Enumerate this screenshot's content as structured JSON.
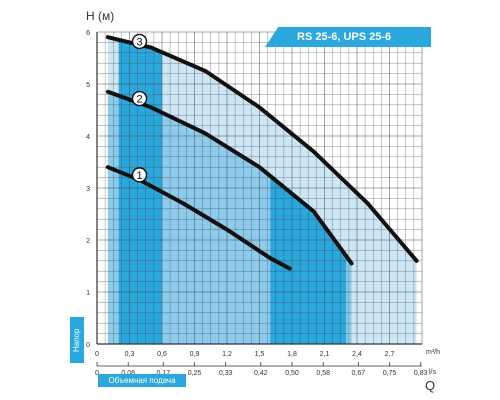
{
  "chart_data": {
    "type": "line",
    "title": "RS 25-6, UPS 25-6",
    "ylabel": "H (м)",
    "xlabel": "Q",
    "x_unit_top": "m³/h",
    "x_unit_bottom": "l/s",
    "side_label": "Напор",
    "bottom_label": "Объемная подача",
    "xlim": [
      0,
      3
    ],
    "ylim": [
      0,
      6
    ],
    "x_ticks_m3h": [
      "0",
      "0,3",
      "0,6",
      "0,9",
      "1,2",
      "1,5",
      "1,8",
      "2,1",
      "2,4",
      "2,7"
    ],
    "x_ticks_m3h_values": [
      0,
      0.3,
      0.6,
      0.9,
      1.2,
      1.5,
      1.8,
      2.1,
      2.4,
      2.7
    ],
    "x_ticks_ls": [
      "0",
      "0,08",
      "0,17",
      "0,25",
      "0,33",
      "0,42",
      "0,50",
      "0,58",
      "0,67",
      "0,75",
      "0,83"
    ],
    "x_ticks_ls_values": [
      0,
      0.288,
      0.612,
      0.9,
      1.188,
      1.512,
      1.8,
      2.088,
      2.412,
      2.7,
      2.988
    ],
    "y_ticks": [
      "0",
      "1",
      "2",
      "3",
      "4",
      "5",
      "6"
    ],
    "y_ticks_values": [
      0,
      1,
      2,
      3,
      4,
      5,
      6
    ],
    "grid": true,
    "colors": {
      "curve": "#111111",
      "light_fill": "#cde6f6",
      "mid_fill": "#8ccbeb",
      "dark_fill": "#2aa7dc",
      "accent": "#2aa7dc"
    },
    "series": [
      {
        "name": "1",
        "x": [
          0.1,
          0.4,
          0.8,
          1.2,
          1.6,
          1.78
        ],
        "y": [
          3.4,
          3.15,
          2.7,
          2.2,
          1.65,
          1.45
        ]
      },
      {
        "name": "2",
        "x": [
          0.1,
          0.5,
          1.0,
          1.5,
          2.0,
          2.35
        ],
        "y": [
          4.85,
          4.55,
          4.05,
          3.4,
          2.55,
          1.55
        ]
      },
      {
        "name": "3",
        "x": [
          0.1,
          0.5,
          1.0,
          1.5,
          2.0,
          2.5,
          2.95
        ],
        "y": [
          5.9,
          5.7,
          5.25,
          4.55,
          3.7,
          2.7,
          1.6
        ]
      }
    ],
    "highlight_bands": [
      {
        "x": [
          0.2,
          0.6
        ]
      },
      {
        "x": [
          1.6,
          2.3
        ]
      }
    ]
  }
}
